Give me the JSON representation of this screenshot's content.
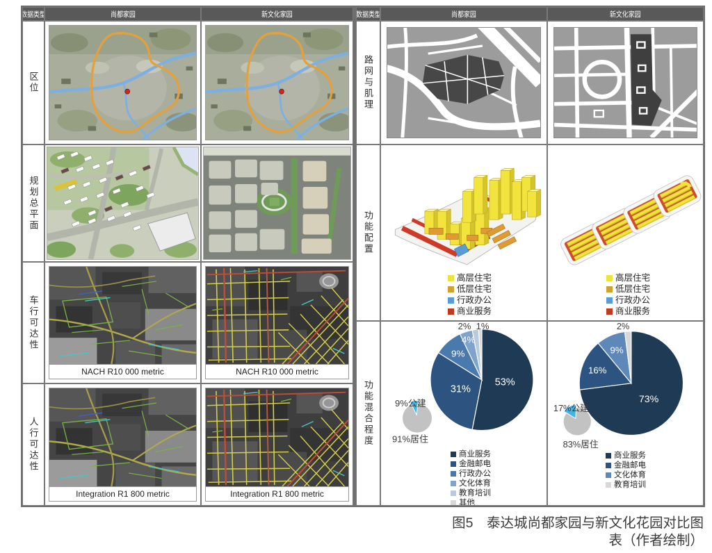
{
  "figure_caption": "图5　泰达城尚都家园与新文化花园对比图表（作者绘制）",
  "left_table": {
    "header": [
      "数据类型",
      "尚都家园",
      "新文化家园"
    ],
    "rows": [
      {
        "label": "区位"
      },
      {
        "label": "规划总平面"
      },
      {
        "label": "车行可达性",
        "caption": "NACH R10 000 metric"
      },
      {
        "label": "人行可达性",
        "caption": "Integration R1 800 metric"
      }
    ]
  },
  "right_table": {
    "header": [
      "数据类型",
      "尚都家园",
      "新文化家园"
    ],
    "rows": [
      {
        "label": "路网与肌理"
      },
      {
        "label": "功能配置"
      },
      {
        "label": "功能混合程度"
      }
    ]
  },
  "function_config_legend": [
    {
      "label": "高层住宅",
      "color": "#ece43e"
    },
    {
      "label": "低层住宅",
      "color": "#cfa12e"
    },
    {
      "label": "行政办公",
      "color": "#5b9bd5"
    },
    {
      "label": "商业服务",
      "color": "#c03a20"
    }
  ],
  "chart_data": [
    {
      "type": "pie",
      "community": "尚都家园",
      "title": "功能混合程度（尚都家园）",
      "labels": [
        "商业服务",
        "金融邮电",
        "行政办公",
        "文化体育",
        "教育培训",
        "其他"
      ],
      "values": [
        53,
        31,
        9,
        4,
        2,
        1
      ],
      "colors": [
        "#1e3a55",
        "#2d5480",
        "#4a79ad",
        "#7fa3cc",
        "#b9cade",
        "#d8d8d8"
      ],
      "legend_position": "bottom",
      "sub_pie": {
        "labels": [
          "9%公建",
          "91%居住"
        ],
        "values": [
          9,
          91
        ],
        "colors": [
          "#43b4e4",
          "#c2c2c2"
        ]
      }
    },
    {
      "type": "pie",
      "community": "新文化家园",
      "title": "功能混合程度（新文化家园）",
      "labels": [
        "商业服务",
        "金融邮电",
        "文化体育",
        "教育培训"
      ],
      "values": [
        73,
        16,
        9,
        2
      ],
      "colors": [
        "#1e3a55",
        "#2d5480",
        "#5e88b8",
        "#d8d8d8"
      ],
      "legend_position": "bottom",
      "sub_pie": {
        "labels": [
          "17%公建",
          "83%居住"
        ],
        "values": [
          17,
          83
        ],
        "colors": [
          "#43b4e4",
          "#c2c2c2"
        ]
      }
    }
  ]
}
